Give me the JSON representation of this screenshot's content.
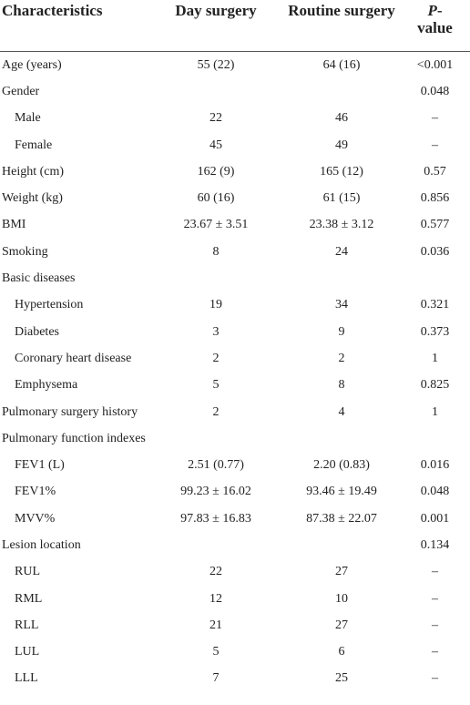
{
  "table": {
    "header": [
      "Characteristics",
      "Day surgery",
      "Routine surgery",
      "P-value"
    ],
    "rows": [
      [
        "Age (years)",
        "55 (22)",
        "64 (16)",
        "<0.001"
      ],
      [
        "Gender",
        null,
        null,
        "0.048"
      ],
      [
        "Male",
        "22",
        "46",
        "–"
      ],
      [
        "Female",
        "45",
        "49",
        "–"
      ],
      [
        "Height (cm)",
        "162 (9)",
        "165 (12)",
        "0.57"
      ],
      [
        "Weight (kg)",
        "60 (16)",
        "61 (15)",
        "0.856"
      ],
      [
        "BMI",
        "23.67 ± 3.51",
        "23.38 ± 3.12",
        "0.577"
      ],
      [
        "Smoking",
        "8",
        "24",
        "0.036"
      ],
      [
        "Basic diseases",
        null,
        null,
        null
      ],
      [
        "Hypertension",
        "19",
        "34",
        "0.321"
      ],
      [
        "Diabetes",
        "3",
        "9",
        "0.373"
      ],
      [
        "Coronary heart disease",
        "2",
        "2",
        "1"
      ],
      [
        "Emphysema",
        "5",
        "8",
        "0.825"
      ],
      [
        "Pulmonary surgery history",
        "2",
        "4",
        "1"
      ],
      [
        "Pulmonary function indexes",
        null,
        null,
        null
      ],
      [
        "FEV1 (L)",
        "2.51 (0.77)",
        "2.20 (0.83)",
        "0.016"
      ],
      [
        "FEV1%",
        "99.23 ± 16.02",
        "93.46 ± 19.49",
        "0.048"
      ],
      [
        "MVV%",
        "97.83 ± 16.83",
        "87.38 ± 22.07",
        "0.001"
      ],
      [
        "Lesion location",
        null,
        null,
        "0.134"
      ],
      [
        "RUL",
        "22",
        "27",
        "–"
      ],
      [
        "RML",
        "12",
        "10",
        "–"
      ],
      [
        "RLL",
        "21",
        "27",
        "–"
      ],
      [
        "LUL",
        "5",
        "6",
        "–"
      ],
      [
        "LLL",
        "7",
        "25",
        "–"
      ]
    ]
  }
}
